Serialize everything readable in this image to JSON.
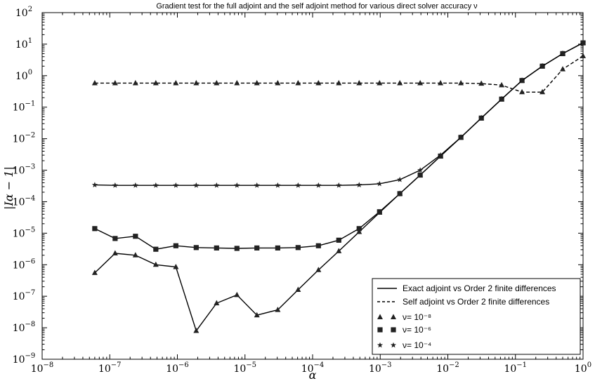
{
  "chart_data": {
    "type": "line",
    "title": "Gradient test for the full adjoint and the self adjoint method for various direct solver accuracy ν",
    "xlabel": "α",
    "ylabel": "|Iα − 1|",
    "xscale": "log",
    "yscale": "log",
    "xlim": [
      1e-08,
      1
    ],
    "ylim": [
      1e-09,
      100
    ],
    "x_ticks": [
      "-8",
      "-7",
      "-6",
      "-5",
      "-4",
      "-3",
      "-2",
      "-1",
      "0"
    ],
    "y_ticks": [
      "-9",
      "-8",
      "-7",
      "-6",
      "-5",
      "-4",
      "-3",
      "-2",
      "-1",
      "0",
      "1",
      "2"
    ],
    "legend_position": "bottom-right",
    "legend": {
      "solid": "Exact adjoint vs Order 2 finite differences",
      "dashed": "Self adjoint vs Order 2 finite differences",
      "triangle": "ν= 10⁻⁸",
      "square": "ν= 10⁻⁶",
      "star": "ν= 10⁻⁴"
    },
    "x": [
      6e-08,
      1.2e-07,
      2.4e-07,
      4.8e-07,
      9.5e-07,
      1.9e-06,
      3.8e-06,
      7.6e-06,
      1.5e-05,
      3.05e-05,
      6.1e-05,
      0.000122,
      0.000244,
      0.000488,
      0.000977,
      0.00195,
      0.0039,
      0.0078,
      0.0156,
      0.0313,
      0.0625,
      0.125,
      0.25,
      0.5,
      1.0
    ],
    "series": [
      {
        "name": "ν= 10⁻⁸",
        "style": "solid",
        "marker": "triangle",
        "values": [
          5.5e-07,
          2.3e-06,
          2e-06,
          1e-06,
          8.5e-07,
          8e-09,
          6e-08,
          1.1e-07,
          2.5e-08,
          3.7e-08,
          1.6e-07,
          6.8e-07,
          2.7e-06,
          1.1e-05,
          4.5e-05,
          0.00018,
          0.0007,
          0.0028,
          0.011,
          0.045,
          0.18,
          0.7,
          2.0,
          5.0,
          11.0
        ]
      },
      {
        "name": "ν= 10⁻⁶",
        "style": "solid",
        "marker": "square",
        "values": [
          1.4e-05,
          6.8e-06,
          8e-06,
          3.1e-06,
          4e-06,
          3.5e-06,
          3.4e-06,
          3.3e-06,
          3.4e-06,
          3.4e-06,
          3.5e-06,
          4e-06,
          6e-06,
          1.4e-05,
          4.8e-05,
          0.00018,
          0.0007,
          0.0028,
          0.011,
          0.045,
          0.18,
          0.7,
          2.0,
          5.0,
          11.0
        ]
      },
      {
        "name": "ν= 10⁻⁴",
        "style": "solid",
        "marker": "star",
        "values": [
          0.00034,
          0.00033,
          0.00033,
          0.00033,
          0.00033,
          0.00033,
          0.00033,
          0.00033,
          0.00033,
          0.00033,
          0.00033,
          0.00033,
          0.00033,
          0.00034,
          0.00037,
          0.0005,
          0.001,
          0.003,
          0.011,
          0.045,
          0.18,
          0.7,
          2.0,
          5.0,
          11.0
        ]
      },
      {
        "name": "",
        "style": "dashed",
        "marker": "triangle",
        "values": [
          0.58,
          0.58,
          0.58,
          0.58,
          0.58,
          0.58,
          0.58,
          0.58,
          0.58,
          0.58,
          0.58,
          0.58,
          0.58,
          0.58,
          0.58,
          0.58,
          0.58,
          0.58,
          0.58,
          0.56,
          0.5,
          0.3,
          0.3,
          1.6,
          4.2
        ]
      }
    ]
  }
}
